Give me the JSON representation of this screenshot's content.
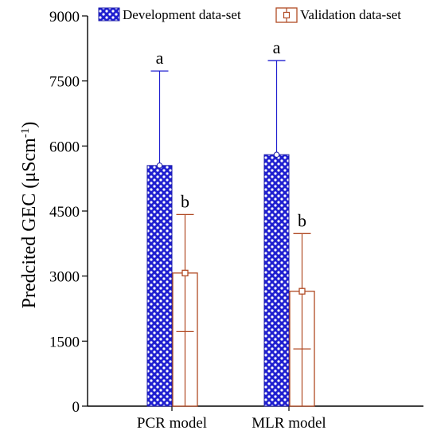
{
  "chart_data": {
    "type": "bar",
    "categories": [
      "PCR model",
      "MLR model"
    ],
    "series": [
      {
        "name": "Development data-set",
        "values": [
          5550,
          5800
        ],
        "error_plus": [
          2180,
          2170
        ],
        "error_minus": [
          0,
          0
        ],
        "significance": [
          "a",
          "a"
        ],
        "color": "#1f1fd0",
        "pattern": "dotted-checker"
      },
      {
        "name": "Validation data-set",
        "values": [
          3070,
          2650
        ],
        "error_plus": [
          1350,
          1330
        ],
        "error_minus": [
          1350,
          1330
        ],
        "significance": [
          "b",
          "b"
        ],
        "color": "#b04a24",
        "pattern": "open-with-square-marker"
      }
    ],
    "xlabel": "",
    "ylabel": "Predcited GEC (μScm",
    "ylabel_superscript": "-1",
    "ylabel_close": ")",
    "ylim": [
      0,
      9000
    ],
    "yticks": [
      "0",
      "1500",
      "3000",
      "4500",
      "6000",
      "7500",
      "9000"
    ],
    "grid": false,
    "legend_position": "top"
  }
}
